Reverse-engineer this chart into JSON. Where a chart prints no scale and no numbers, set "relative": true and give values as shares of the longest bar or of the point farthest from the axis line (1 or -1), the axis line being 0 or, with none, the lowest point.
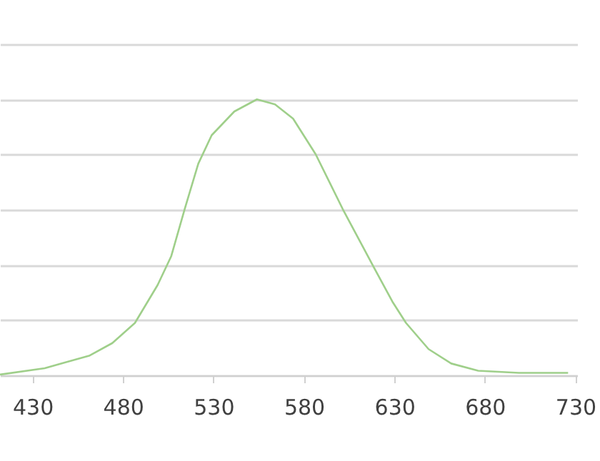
{
  "chart_data": {
    "type": "line",
    "relative": true,
    "xlim": [
      412,
      731
    ],
    "xticks": [
      430,
      480,
      530,
      580,
      630,
      680,
      730
    ],
    "grid": "y",
    "line_style": "solid",
    "marker": "none",
    "series": [
      {
        "color": "#9fcf8a",
        "x": [
          412,
          436.7,
          461.6,
          474.1,
          486.6,
          499.1,
          506.6,
          514.1,
          521.6,
          529.0,
          541.5,
          554.0,
          564.0,
          574.0,
          586.5,
          601.4,
          618.9,
          628.9,
          636.4,
          648.9,
          661.4,
          676.3,
          698.8,
          726
        ],
        "values": [
          0.003,
          0.026,
          0.072,
          0.117,
          0.19,
          0.327,
          0.431,
          0.603,
          0.767,
          0.87,
          0.956,
          1.0,
          0.982,
          0.93,
          0.801,
          0.603,
          0.388,
          0.267,
          0.19,
          0.095,
          0.043,
          0.017,
          0.009,
          0.009
        ]
      }
    ]
  }
}
